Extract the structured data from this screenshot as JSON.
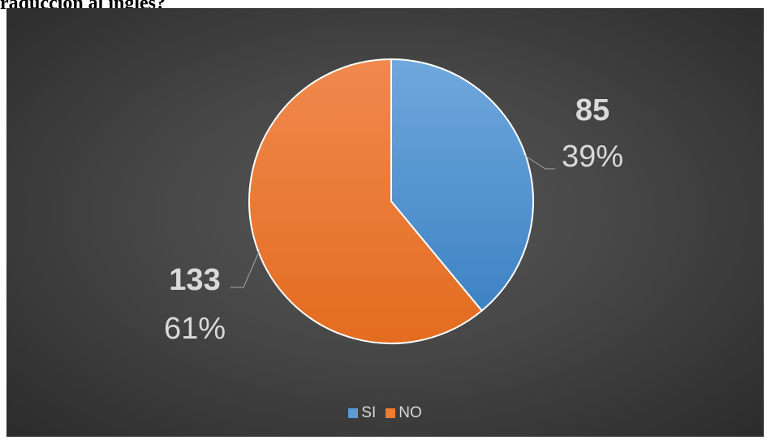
{
  "header": {
    "cut_heading": "raducción al inglés?"
  },
  "chart_data": {
    "type": "pie",
    "title": "",
    "slices": [
      {
        "label": "SI",
        "value": 85,
        "percent": "39%",
        "color": "#5B9BD5"
      },
      {
        "label": "NO",
        "value": 133,
        "percent": "61%",
        "color": "#ED7D31"
      }
    ],
    "legend": {
      "position": "bottom",
      "items": [
        "SI",
        "NO"
      ]
    }
  }
}
